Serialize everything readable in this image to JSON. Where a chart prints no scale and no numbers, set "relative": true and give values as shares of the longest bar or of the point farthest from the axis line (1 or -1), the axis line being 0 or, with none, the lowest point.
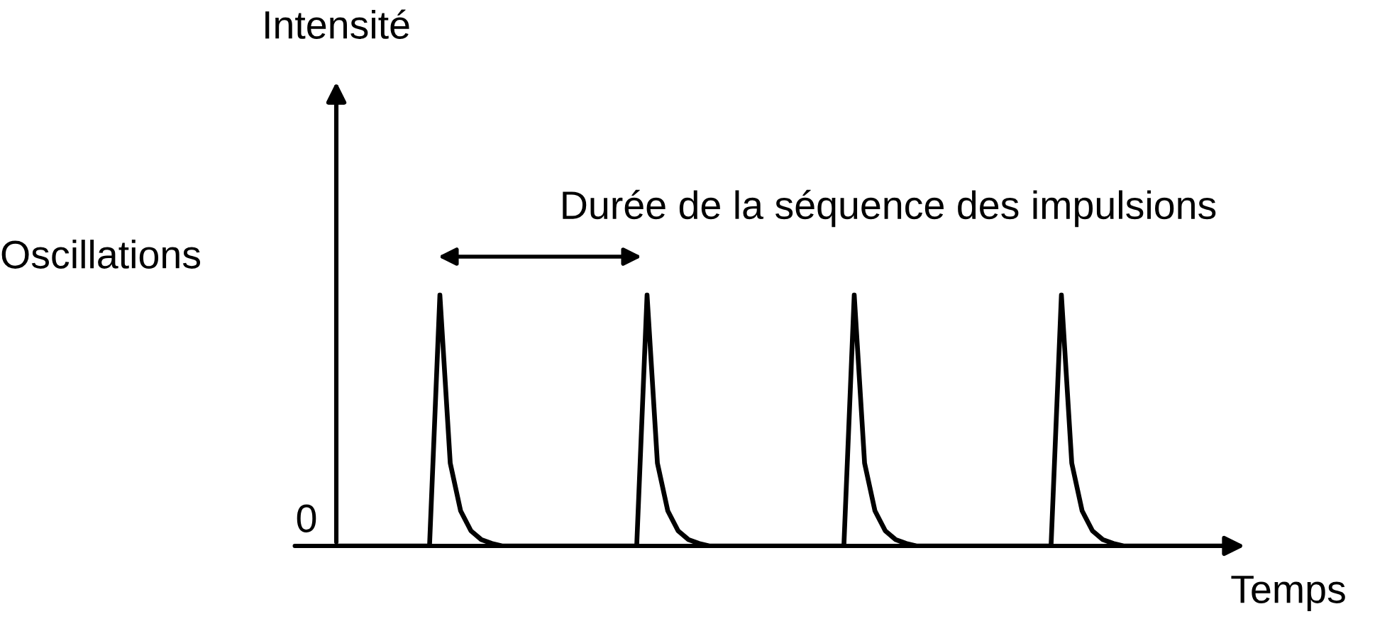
{
  "chart_data": {
    "type": "line",
    "relative": true,
    "xlabel": "Temps",
    "annotations": [
      "Intensité",
      "Oscillations",
      "0",
      "Durée de la séquence des impulsions"
    ],
    "categories": [
      null,
      null,
      null,
      null,
      null,
      null,
      null,
      null,
      null,
      null,
      null,
      null,
      null,
      null,
      null,
      null,
      null,
      null,
      null,
      null,
      null,
      null,
      null,
      null,
      null,
      null,
      null,
      null,
      null,
      null,
      null,
      null,
      null,
      null,
      null,
      null,
      null,
      null,
      null,
      null,
      null,
      null,
      null,
      null,
      null,
      null,
      null,
      null,
      null,
      null,
      null,
      null,
      null,
      null,
      null,
      null,
      null,
      null,
      null,
      null,
      null,
      null,
      null,
      null,
      null,
      null,
      null,
      null,
      null,
      null,
      null,
      null,
      null,
      null,
      null,
      null,
      null,
      null,
      null,
      null,
      null,
      null,
      null,
      null,
      null,
      null,
      null,
      null
    ],
    "series": [
      {
        "color": "#000000",
        "values": [
          0,
          0,
          0,
          0,
          0,
          0,
          0,
          0,
          0,
          0,
          1,
          0.33,
          0.14,
          0.06,
          0.025,
          0.01,
          0,
          0,
          0,
          0,
          0,
          0,
          0,
          0,
          0,
          0,
          0,
          0,
          0,
          0,
          1,
          0.33,
          0.14,
          0.06,
          0.025,
          0.01,
          0,
          0,
          0,
          0,
          0,
          0,
          0,
          0,
          0,
          0,
          0,
          0,
          0,
          0,
          1,
          0.33,
          0.14,
          0.06,
          0.025,
          0.01,
          0,
          0,
          0,
          0,
          0,
          0,
          0,
          0,
          0,
          0,
          0,
          0,
          0,
          0,
          1,
          0.33,
          0.14,
          0.06,
          0.025,
          0.01,
          0,
          0,
          0,
          0,
          0,
          0,
          0,
          0,
          0,
          0,
          0,
          0
        ]
      }
    ],
    "marker": "none",
    "line_style": "solid"
  }
}
